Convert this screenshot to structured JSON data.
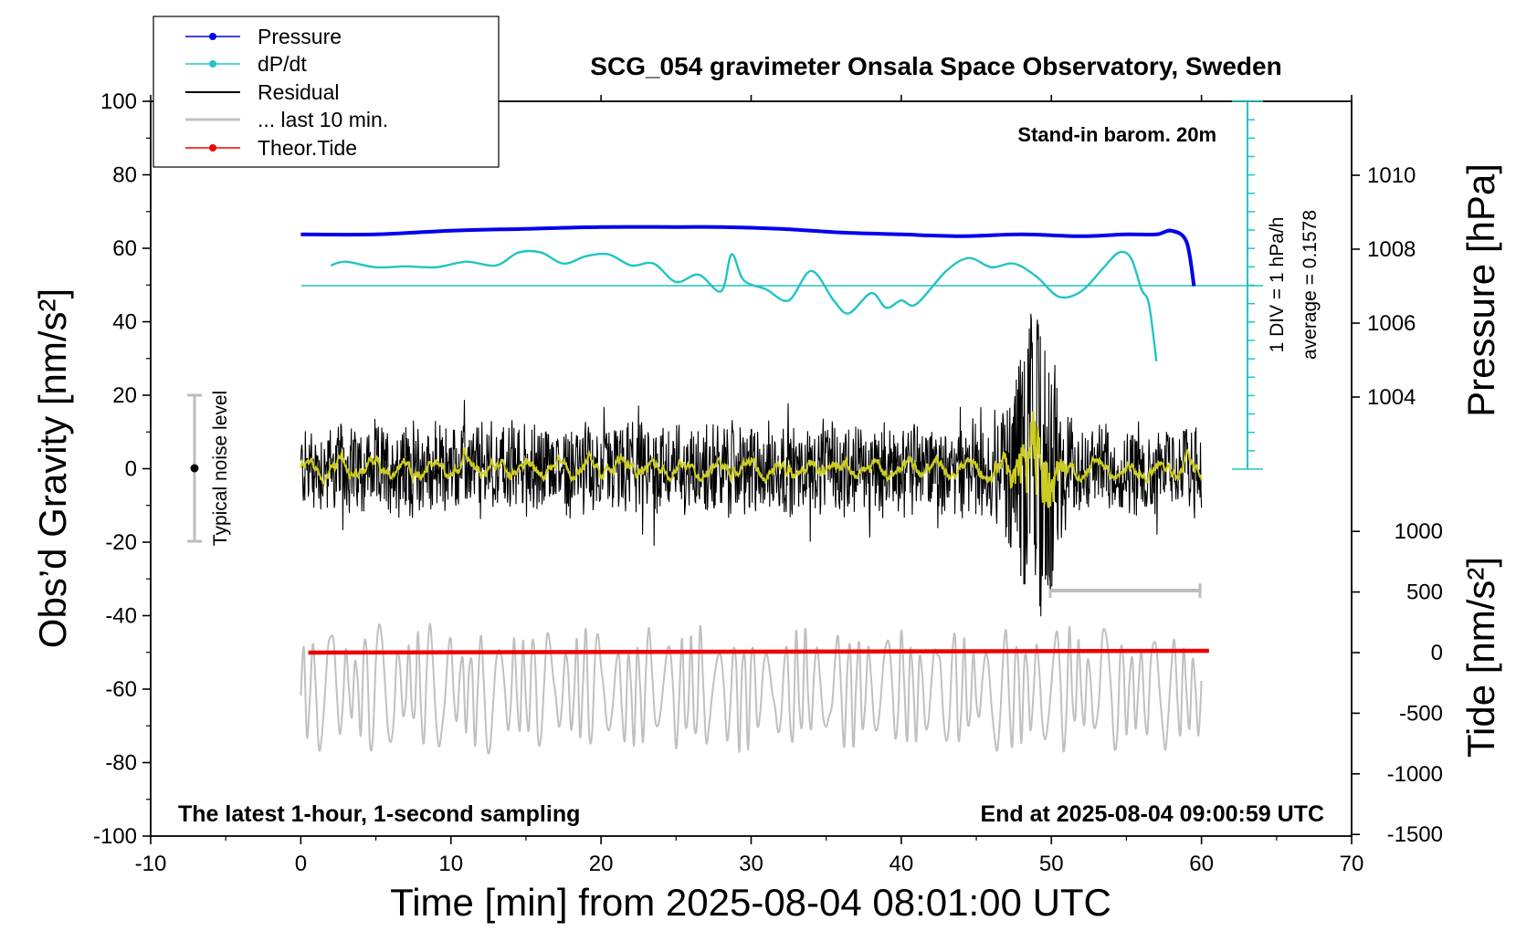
{
  "chart_data": {
    "type": "line",
    "title": "SCG_054 gravimeter Onsala Space Observatory, Sweden",
    "xlabel": "Time [min] from 2025-08-04 08:01:00 UTC",
    "ylabel_left": "Obs’d Gravity [nm/s²]",
    "ylabel_right_top": "Pressure [hPa]",
    "ylabel_right_bottom": "Tide [nm/s²]",
    "xlim": [
      -10,
      70
    ],
    "ylim_left": [
      -100,
      100
    ],
    "xticks": [
      "-10",
      "0",
      "10",
      "20",
      "30",
      "40",
      "50",
      "60",
      "70"
    ],
    "yticks_left": [
      "100",
      "80",
      "60",
      "40",
      "20",
      "0",
      "-20",
      "-40",
      "-60",
      "-80",
      "-100"
    ],
    "yticks_pressure": [
      "1010",
      "1008",
      "1006",
      "1004"
    ],
    "yticks_tide": [
      "1000",
      "500",
      "0",
      "-500",
      "-1000",
      "-1500"
    ],
    "annotations": {
      "top_right": "Stand-in barom. 20m",
      "bottom_left": "The latest 1-hour, 1-second sampling",
      "bottom_right": "End at 2025-08-04 09:00:59 UTC",
      "noise": "Typical noise level",
      "dpdt_scale": "1 DIV = 1 hPa/h",
      "dpdt_average": "average = 0.1578"
    },
    "legend": {
      "position": "top-left",
      "entries": [
        "Pressure",
        "dP/dt",
        "Residual",
        "... last 10 min.",
        "Theor.Tide"
      ]
    },
    "colors": {
      "pressure": "#0000ee",
      "dpdt": "#22c4c4",
      "residual": "#000000",
      "last10": "#c0c0c0",
      "tide": "#ee0000",
      "smoothed": "#cccc22"
    },
    "series": [
      {
        "name": "Pressure",
        "unit": "hPa",
        "x": [
          0,
          5,
          10,
          15,
          20,
          25,
          28,
          32,
          36,
          40,
          44,
          48,
          52,
          55,
          57,
          58,
          59,
          59.5
        ],
        "y": [
          1008.4,
          1008.4,
          1008.5,
          1008.55,
          1008.6,
          1008.6,
          1008.6,
          1008.55,
          1008.45,
          1008.4,
          1008.35,
          1008.4,
          1008.35,
          1008.4,
          1008.4,
          1008.5,
          1008.2,
          1007.0
        ]
      },
      {
        "name": "dP/dt",
        "unit": "hPa/h",
        "x": [
          2,
          3,
          5,
          7,
          9,
          11,
          13,
          14.5,
          16,
          17.5,
          19,
          20.5,
          22,
          23.5,
          25,
          26.5,
          28,
          28.7,
          29.5,
          31,
          32.5,
          34,
          35.5,
          36.5,
          38,
          39,
          40,
          41,
          43,
          44.5,
          46,
          47.5,
          49,
          50.5,
          52,
          53.5,
          54.5,
          55.3,
          56,
          56.5,
          57
        ],
        "y": [
          1.1,
          1.3,
          1.0,
          1.05,
          1.0,
          1.3,
          1.1,
          1.8,
          1.8,
          1.2,
          1.6,
          1.7,
          1.1,
          1.2,
          0.2,
          0.6,
          -0.3,
          1.7,
          0.3,
          -0.2,
          -0.8,
          0.8,
          -0.8,
          -1.5,
          -0.4,
          -1.2,
          -0.8,
          -1.0,
          0.8,
          1.5,
          1.0,
          1.2,
          0.5,
          -0.6,
          -0.3,
          1.0,
          1.8,
          1.5,
          -0.2,
          -1.0,
          -4.1
        ]
      },
      {
        "name": "Theor.Tide",
        "unit": "nm/s²",
        "x": [
          0.5,
          60.5
        ],
        "y": [
          0,
          15
        ]
      }
    ]
  }
}
